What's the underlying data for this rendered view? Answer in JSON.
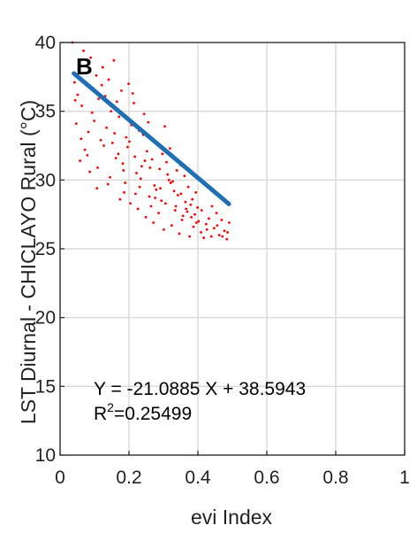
{
  "chart_data": {
    "type": "scatter",
    "panel_label": "B",
    "xlabel": "evi Index",
    "ylabel": "LST Diurnal - CHICLAYO Rural (°C)",
    "xlim": [
      0,
      1
    ],
    "ylim": [
      10,
      40
    ],
    "xticks": [
      0,
      0.2,
      0.4,
      0.6,
      0.8,
      1
    ],
    "xtick_labels": [
      "0",
      "0.2",
      "0.4",
      "0.6",
      "0.8",
      "1"
    ],
    "yticks": [
      10,
      15,
      20,
      25,
      30,
      35,
      40
    ],
    "ytick_labels": [
      "10",
      "15",
      "20",
      "25",
      "30",
      "35",
      "40"
    ],
    "grid": true,
    "series": [
      {
        "kind": "points",
        "color": "#ff0000",
        "points": [
          [
            0.036,
            40.0
          ],
          [
            0.055,
            38.5
          ],
          [
            0.042,
            37.1
          ],
          [
            0.068,
            39.4
          ],
          [
            0.051,
            36.2
          ],
          [
            0.077,
            37.8
          ],
          [
            0.063,
            35.4
          ],
          [
            0.089,
            38.9
          ],
          [
            0.047,
            34.1
          ],
          [
            0.095,
            36.7
          ],
          [
            0.082,
            33.5
          ],
          [
            0.105,
            37.6
          ],
          [
            0.072,
            32.2
          ],
          [
            0.112,
            35.9
          ],
          [
            0.058,
            31.4
          ],
          [
            0.124,
            38.2
          ],
          [
            0.099,
            34.3
          ],
          [
            0.131,
            36.1
          ],
          [
            0.086,
            30.6
          ],
          [
            0.141,
            37.3
          ],
          [
            0.118,
            32.9
          ],
          [
            0.148,
            35.0
          ],
          [
            0.107,
            29.4
          ],
          [
            0.156,
            38.7
          ],
          [
            0.135,
            33.8
          ],
          [
            0.162,
            31.6
          ],
          [
            0.121,
            36.9
          ],
          [
            0.171,
            34.6
          ],
          [
            0.145,
            30.2
          ],
          [
            0.178,
            36.5
          ],
          [
            0.152,
            32.7
          ],
          [
            0.186,
            29.1
          ],
          [
            0.165,
            35.7
          ],
          [
            0.192,
            33.1
          ],
          [
            0.174,
            28.6
          ],
          [
            0.199,
            37.0
          ],
          [
            0.182,
            31.2
          ],
          [
            0.207,
            34.0
          ],
          [
            0.189,
            29.8
          ],
          [
            0.214,
            35.6
          ],
          [
            0.196,
            32.4
          ],
          [
            0.222,
            30.5
          ],
          [
            0.204,
            28.3
          ],
          [
            0.229,
            33.6
          ],
          [
            0.211,
            36.3
          ],
          [
            0.237,
            31.0
          ],
          [
            0.219,
            29.0
          ],
          [
            0.244,
            34.8
          ],
          [
            0.226,
            27.9
          ],
          [
            0.252,
            32.1
          ],
          [
            0.234,
            30.1
          ],
          [
            0.259,
            28.8
          ],
          [
            0.241,
            33.3
          ],
          [
            0.267,
            31.5
          ],
          [
            0.249,
            27.3
          ],
          [
            0.274,
            29.6
          ],
          [
            0.256,
            34.2
          ],
          [
            0.282,
            32.6
          ],
          [
            0.264,
            28.1
          ],
          [
            0.289,
            30.8
          ],
          [
            0.271,
            26.9
          ],
          [
            0.297,
            31.9
          ],
          [
            0.279,
            29.3
          ],
          [
            0.304,
            33.9
          ],
          [
            0.286,
            27.6
          ],
          [
            0.312,
            30.4
          ],
          [
            0.294,
            28.5
          ],
          [
            0.319,
            32.3
          ],
          [
            0.301,
            26.4
          ],
          [
            0.327,
            29.9
          ],
          [
            0.309,
            31.3
          ],
          [
            0.334,
            27.8
          ],
          [
            0.316,
            30.0
          ],
          [
            0.342,
            28.9
          ],
          [
            0.324,
            26.7
          ],
          [
            0.349,
            31.1
          ],
          [
            0.331,
            29.2
          ],
          [
            0.357,
            27.4
          ],
          [
            0.339,
            30.7
          ],
          [
            0.364,
            28.4
          ],
          [
            0.346,
            26.1
          ],
          [
            0.372,
            29.5
          ],
          [
            0.354,
            27.1
          ],
          [
            0.379,
            28.2
          ],
          [
            0.361,
            30.3
          ],
          [
            0.387,
            26.6
          ],
          [
            0.369,
            27.7
          ],
          [
            0.394,
            29.1
          ],
          [
            0.376,
            25.9
          ],
          [
            0.402,
            27.0
          ],
          [
            0.384,
            28.6
          ],
          [
            0.409,
            26.2
          ],
          [
            0.391,
            27.5
          ],
          [
            0.417,
            25.8
          ],
          [
            0.399,
            28.0
          ],
          [
            0.424,
            26.8
          ],
          [
            0.432,
            27.2
          ],
          [
            0.439,
            25.9
          ],
          [
            0.447,
            26.5
          ],
          [
            0.454,
            27.6
          ],
          [
            0.462,
            26.0
          ],
          [
            0.469,
            27.1
          ],
          [
            0.477,
            26.3
          ],
          [
            0.484,
            25.7
          ],
          [
            0.491,
            26.9
          ],
          [
            0.044,
            35.8
          ],
          [
            0.061,
            33.0
          ],
          [
            0.079,
            31.8
          ],
          [
            0.093,
            34.9
          ],
          [
            0.109,
            30.9
          ],
          [
            0.127,
            32.5
          ],
          [
            0.139,
            29.7
          ],
          [
            0.158,
            33.4
          ],
          [
            0.169,
            31.9
          ],
          [
            0.184,
            30.7
          ],
          [
            0.201,
            32.8
          ],
          [
            0.217,
            31.7
          ],
          [
            0.231,
            29.5
          ],
          [
            0.246,
            31.4
          ],
          [
            0.261,
            30.9
          ],
          [
            0.276,
            28.7
          ],
          [
            0.291,
            29.4
          ],
          [
            0.306,
            28.3
          ],
          [
            0.321,
            29.8
          ],
          [
            0.336,
            28.1
          ],
          [
            0.351,
            29.0
          ],
          [
            0.366,
            27.9
          ],
          [
            0.381,
            27.3
          ],
          [
            0.396,
            26.9
          ],
          [
            0.411,
            27.8
          ],
          [
            0.426,
            26.4
          ],
          [
            0.441,
            28.1
          ],
          [
            0.456,
            26.7
          ],
          [
            0.471,
            25.9
          ],
          [
            0.486,
            26.2
          ]
        ]
      },
      {
        "kind": "fit_line",
        "color": "#1f6fb4",
        "x": [
          0.04,
          0.49
        ],
        "y": [
          37.75,
          28.26
        ]
      }
    ],
    "annotation": {
      "equation_line1": "Y = -21.0885 X + 38.5943",
      "equation_line2_prefix": "R",
      "equation_line2_sup": "2",
      "equation_line2_suffix": "=0.25499"
    }
  }
}
